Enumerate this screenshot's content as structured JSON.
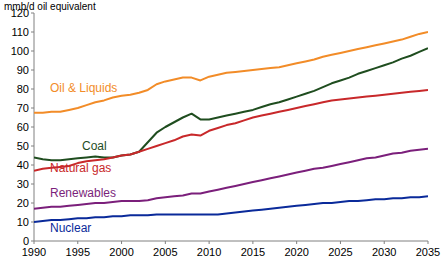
{
  "chart_data": {
    "type": "line",
    "y_label": "mmb/d oil equivalent",
    "x": [
      1990,
      1991,
      1992,
      1993,
      1994,
      1995,
      1996,
      1997,
      1998,
      1999,
      2000,
      2001,
      2002,
      2003,
      2004,
      2005,
      2006,
      2007,
      2008,
      2009,
      2010,
      2011,
      2012,
      2013,
      2014,
      2015,
      2016,
      2017,
      2018,
      2019,
      2020,
      2021,
      2022,
      2023,
      2024,
      2025,
      2026,
      2027,
      2028,
      2029,
      2030,
      2031,
      2032,
      2033,
      2034,
      2035
    ],
    "xlim": [
      1990,
      2035
    ],
    "xticks": [
      1990,
      1995,
      2000,
      2005,
      2010,
      2015,
      2020,
      2025,
      2030,
      2035
    ],
    "ylim": [
      0,
      120
    ],
    "yticks": [
      0,
      10,
      20,
      30,
      40,
      50,
      60,
      70,
      80,
      90,
      100,
      110,
      120
    ],
    "grid": false,
    "series": [
      {
        "name": "Oil & Liquids",
        "color": "#f28c28",
        "values": [
          67.5,
          67.5,
          68,
          68,
          69,
          70,
          71.5,
          73,
          74,
          75.5,
          76.5,
          77,
          78,
          79.5,
          82.5,
          84,
          85,
          86,
          86,
          84.5,
          86.5,
          87.5,
          88.5,
          89,
          89.5,
          90,
          90.5,
          91,
          91.5,
          92.5,
          93.5,
          94.5,
          95.5,
          97,
          98,
          99,
          100,
          101,
          102,
          103,
          104,
          105,
          106,
          107.5,
          109,
          110
        ]
      },
      {
        "name": "Coal",
        "color": "#1f4d1f",
        "values": [
          44,
          43,
          42.5,
          42.5,
          43,
          43.5,
          44,
          44.5,
          44,
          44,
          45,
          45.5,
          47,
          52,
          57,
          60,
          62.5,
          65,
          67,
          64,
          64,
          65,
          66,
          67,
          68,
          69,
          70.5,
          72,
          73,
          74.5,
          76,
          77.5,
          79,
          81,
          83,
          84.5,
          86,
          88,
          89.5,
          91,
          92.5,
          94,
          96,
          97.5,
          99.5,
          101.5
        ]
      },
      {
        "name": "Natural gas",
        "color": "#c8282a",
        "values": [
          37,
          38,
          38.5,
          39,
          39.5,
          41,
          42,
          42.5,
          43,
          44,
          45,
          45.5,
          47,
          48.5,
          50,
          51.5,
          53,
          55,
          56,
          55.5,
          58,
          59.5,
          61,
          62,
          63.5,
          65,
          66,
          67,
          68,
          69,
          70,
          71,
          72,
          73,
          74,
          74.5,
          75,
          75.5,
          76,
          76.5,
          77,
          77.5,
          78,
          78.5,
          79,
          79.5
        ]
      },
      {
        "name": "Renewables",
        "color": "#7b1f7b",
        "values": [
          17,
          17.5,
          18,
          18,
          18.5,
          19,
          19.5,
          20,
          20,
          20.5,
          21,
          21,
          21,
          21.5,
          22.5,
          23,
          23.5,
          24,
          25,
          25,
          26,
          27,
          28,
          29,
          30,
          31,
          32,
          33,
          34,
          35,
          36,
          37,
          38,
          38.5,
          39.5,
          40.5,
          41.5,
          42.5,
          43.5,
          44,
          45,
          46,
          46.5,
          47.5,
          48,
          48.5
        ]
      },
      {
        "name": "Nuclear",
        "color": "#0a2a9a",
        "values": [
          10,
          10.5,
          11,
          11,
          11.5,
          12,
          12,
          12.5,
          12.5,
          13,
          13,
          13.5,
          13.5,
          13.5,
          14,
          14,
          14,
          14,
          14,
          14,
          14,
          14,
          14.5,
          15,
          15.5,
          16,
          16.5,
          17,
          17.5,
          18,
          18.5,
          19,
          19.5,
          20,
          20,
          20.5,
          21,
          21,
          21.5,
          22,
          22,
          22.5,
          22.5,
          23,
          23,
          23.5
        ]
      }
    ]
  }
}
